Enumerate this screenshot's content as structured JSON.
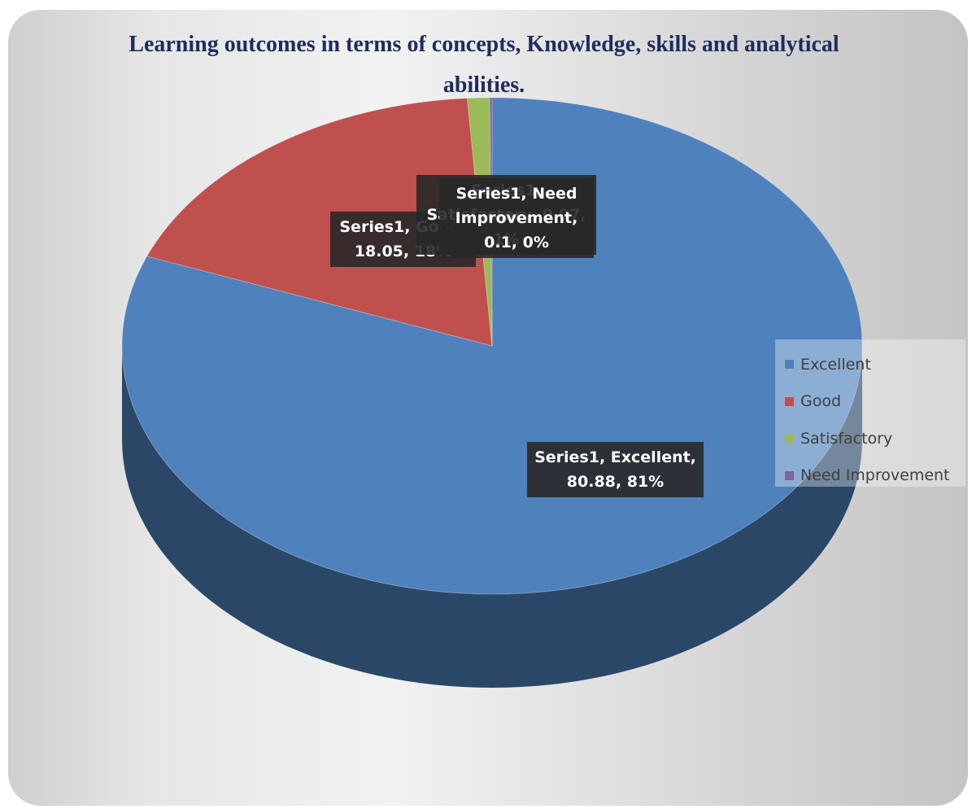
{
  "chart_data": {
    "type": "pie3d",
    "title": "Learning outcomes in terms of concepts, Knowledge, skills and analytical abilities.",
    "series_name": "Series1",
    "categories": [
      "Excellent",
      "Good",
      "Satisfactory",
      "Need Improvement"
    ],
    "values": [
      80.88,
      18.05,
      0.97,
      0.1
    ],
    "value_labels": [
      "Series1, Excellent, 80.88, 81%",
      "Series1, Good, 18.05, 18%",
      "Series1, Satisfactory, 0.97, 1%",
      "Series1, Need Improvement, 0.1, 0%"
    ],
    "colors": [
      "#4f81bd",
      "#c0504d",
      "#9bbb59",
      "#8064a2"
    ],
    "legend": "right"
  }
}
